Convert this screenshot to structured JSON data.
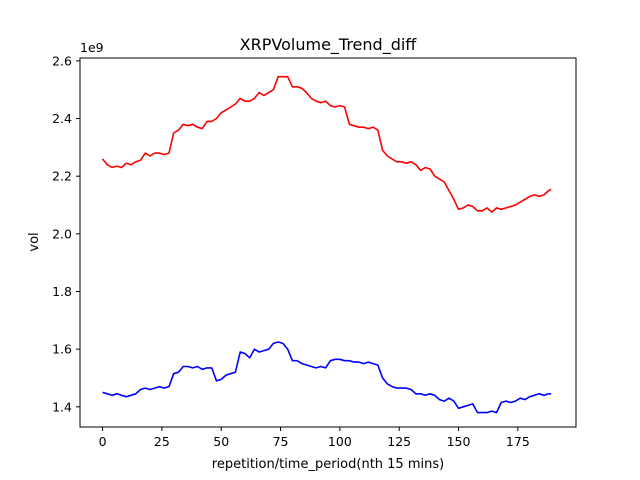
{
  "chart_data": {
    "type": "line",
    "title": "XRPVolume_Trend_diff",
    "xlabel": "repetition/time_period(nth 15 mins)",
    "ylabel": "vol",
    "y_offset_label": "1e9",
    "xlim": [
      -9.5,
      199.5
    ],
    "ylim": [
      1330000000.0,
      2610000000.0
    ],
    "x_ticks": [
      0,
      25,
      50,
      75,
      100,
      125,
      150,
      175
    ],
    "y_ticks": [
      1400000000.0,
      1600000000.0,
      1800000000.0,
      2000000000.0,
      2200000000.0,
      2400000000.0,
      2600000000.0
    ],
    "y_tick_labels": [
      "1.4",
      "1.6",
      "1.8",
      "2.0",
      "2.2",
      "2.4",
      "2.6"
    ],
    "grid": false,
    "series": [
      {
        "color": "#ff0000",
        "x": [
          0,
          2,
          4,
          6,
          8,
          10,
          12,
          14,
          16,
          18,
          20,
          22,
          24,
          26,
          28,
          30,
          32,
          34,
          36,
          38,
          40,
          42,
          44,
          46,
          48,
          50,
          52,
          54,
          56,
          58,
          60,
          62,
          64,
          66,
          68,
          70,
          72,
          74,
          76,
          78,
          80,
          82,
          84,
          86,
          88,
          90,
          92,
          94,
          96,
          98,
          100,
          102,
          104,
          106,
          108,
          110,
          112,
          114,
          116,
          118,
          120,
          122,
          124,
          126,
          128,
          130,
          132,
          134,
          136,
          138,
          140,
          142,
          144,
          146,
          148,
          150,
          152,
          154,
          156,
          158,
          160,
          162,
          164,
          166,
          168,
          170,
          172,
          174,
          176,
          178,
          180,
          182,
          184,
          186,
          188,
          189
        ],
        "values": [
          2260000000.0,
          2240000000.0,
          2230000000.0,
          2235000000.0,
          2230000000.0,
          2245000000.0,
          2240000000.0,
          2250000000.0,
          2255000000.0,
          2280000000.0,
          2270000000.0,
          2280000000.0,
          2280000000.0,
          2275000000.0,
          2280000000.0,
          2350000000.0,
          2360000000.0,
          2380000000.0,
          2375000000.0,
          2380000000.0,
          2370000000.0,
          2365000000.0,
          2390000000.0,
          2390000000.0,
          2400000000.0,
          2420000000.0,
          2430000000.0,
          2440000000.0,
          2450000000.0,
          2470000000.0,
          2460000000.0,
          2460000000.0,
          2470000000.0,
          2490000000.0,
          2480000000.0,
          2490000000.0,
          2500000000.0,
          2545000000.0,
          2545000000.0,
          2545000000.0,
          2510000000.0,
          2510000000.0,
          2505000000.0,
          2490000000.0,
          2470000000.0,
          2460000000.0,
          2455000000.0,
          2460000000.0,
          2445000000.0,
          2440000000.0,
          2445000000.0,
          2440000000.0,
          2380000000.0,
          2375000000.0,
          2370000000.0,
          2370000000.0,
          2365000000.0,
          2370000000.0,
          2360000000.0,
          2290000000.0,
          2270000000.0,
          2260000000.0,
          2250000000.0,
          2250000000.0,
          2245000000.0,
          2250000000.0,
          2240000000.0,
          2220000000.0,
          2230000000.0,
          2225000000.0,
          2200000000.0,
          2190000000.0,
          2180000000.0,
          2150000000.0,
          2120000000.0,
          2085000000.0,
          2090000000.0,
          2100000000.0,
          2095000000.0,
          2080000000.0,
          2080000000.0,
          2090000000.0,
          2075000000.0,
          2090000000.0,
          2085000000.0,
          2090000000.0,
          2095000000.0,
          2100000000.0,
          2110000000.0,
          2120000000.0,
          2130000000.0,
          2135000000.0,
          2130000000.0,
          2135000000.0,
          2150000000.0,
          2155000000.0
        ]
      },
      {
        "color": "#0000ff",
        "x": [
          0,
          2,
          4,
          6,
          8,
          10,
          12,
          14,
          16,
          18,
          20,
          22,
          24,
          26,
          28,
          30,
          32,
          34,
          36,
          38,
          40,
          42,
          44,
          46,
          48,
          50,
          52,
          54,
          56,
          58,
          60,
          62,
          64,
          66,
          68,
          70,
          72,
          74,
          76,
          78,
          80,
          82,
          84,
          86,
          88,
          90,
          92,
          94,
          96,
          98,
          100,
          102,
          104,
          106,
          108,
          110,
          112,
          114,
          116,
          118,
          120,
          122,
          124,
          126,
          128,
          130,
          132,
          134,
          136,
          138,
          140,
          142,
          144,
          146,
          148,
          150,
          152,
          154,
          156,
          158,
          160,
          162,
          164,
          166,
          168,
          170,
          172,
          174,
          176,
          178,
          180,
          182,
          184,
          186,
          188,
          189
        ],
        "values": [
          1450000000.0,
          1445000000.0,
          1440000000.0,
          1445000000.0,
          1440000000.0,
          1435000000.0,
          1440000000.0,
          1445000000.0,
          1460000000.0,
          1465000000.0,
          1460000000.0,
          1465000000.0,
          1470000000.0,
          1465000000.0,
          1470000000.0,
          1515000000.0,
          1520000000.0,
          1540000000.0,
          1540000000.0,
          1535000000.0,
          1540000000.0,
          1530000000.0,
          1535000000.0,
          1535000000.0,
          1490000000.0,
          1495000000.0,
          1510000000.0,
          1515000000.0,
          1520000000.0,
          1590000000.0,
          1585000000.0,
          1570000000.0,
          1600000000.0,
          1590000000.0,
          1595000000.0,
          1600000000.0,
          1620000000.0,
          1625000000.0,
          1620000000.0,
          1600000000.0,
          1560000000.0,
          1560000000.0,
          1550000000.0,
          1545000000.0,
          1540000000.0,
          1535000000.0,
          1540000000.0,
          1535000000.0,
          1560000000.0,
          1565000000.0,
          1565000000.0,
          1560000000.0,
          1560000000.0,
          1555000000.0,
          1555000000.0,
          1550000000.0,
          1555000000.0,
          1550000000.0,
          1545000000.0,
          1500000000.0,
          1480000000.0,
          1470000000.0,
          1465000000.0,
          1465000000.0,
          1465000000.0,
          1460000000.0,
          1445000000.0,
          1445000000.0,
          1440000000.0,
          1445000000.0,
          1440000000.0,
          1425000000.0,
          1420000000.0,
          1430000000.0,
          1420000000.0,
          1395000000.0,
          1400000000.0,
          1405000000.0,
          1410000000.0,
          1380000000.0,
          1380000000.0,
          1380000000.0,
          1385000000.0,
          1380000000.0,
          1415000000.0,
          1420000000.0,
          1415000000.0,
          1420000000.0,
          1430000000.0,
          1425000000.0,
          1435000000.0,
          1440000000.0,
          1445000000.0,
          1440000000.0,
          1445000000.0,
          1445000000.0
        ]
      }
    ]
  }
}
